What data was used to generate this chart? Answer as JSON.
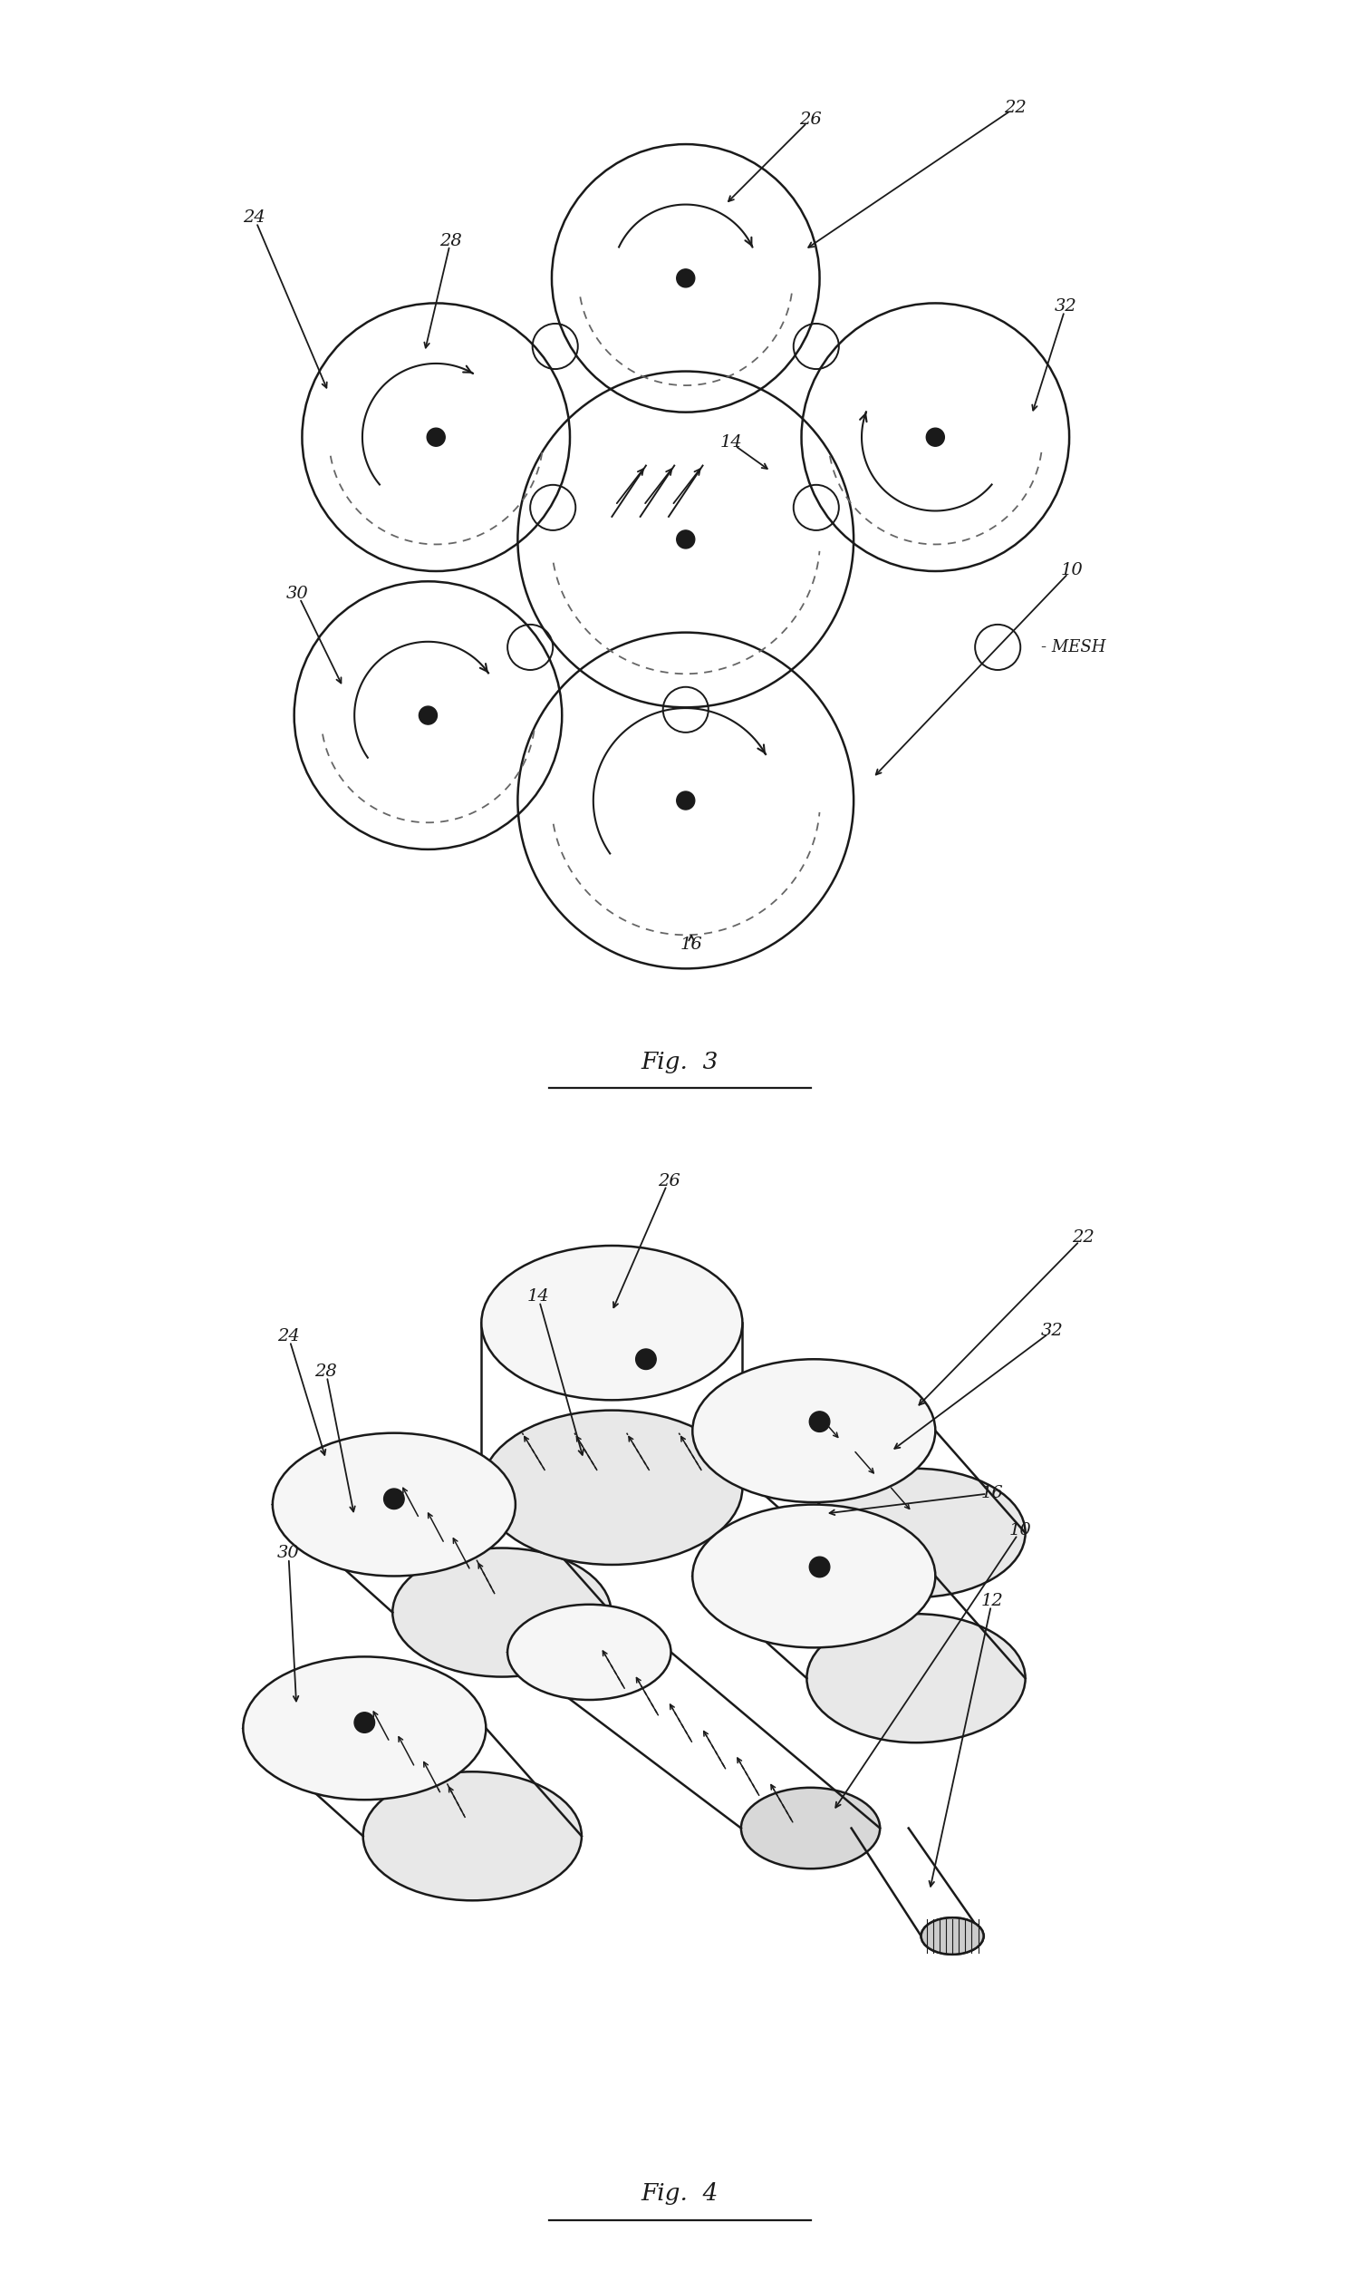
{
  "fig_width": 15.01,
  "fig_height": 25.05,
  "bg_color": "#ffffff",
  "line_color": "#1a1a1a",
  "fig3_title": "Fig.  3",
  "fig4_title": "Fig.  4",
  "mesh_legend_text": "- MESH"
}
